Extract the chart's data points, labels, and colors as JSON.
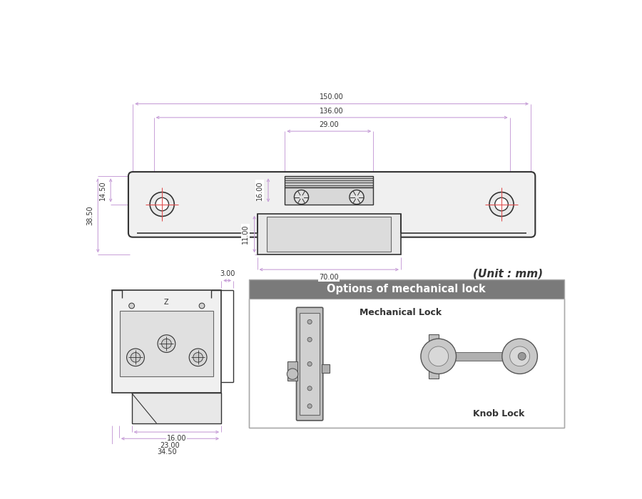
{
  "bg_color": "#ffffff",
  "line_color": "#333333",
  "dim_color": "#c8a0d8",
  "red_color": "#e05050",
  "gray_header": "#808080",
  "dim_font_size": 7.0,
  "label_font_size": 9,
  "unit_text": "(Unit : mm)",
  "box_title": "Options of mechanical lock",
  "mech_label": "Mechanical Lock",
  "knob_label": "Knob Lock"
}
